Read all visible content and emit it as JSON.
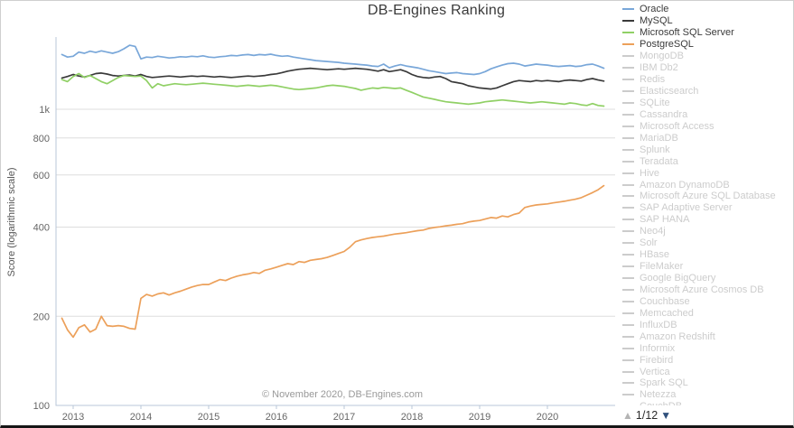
{
  "title": "DB-Engines Ranking",
  "footer": "© November 2020, DB-Engines.com",
  "y_axis": {
    "label": "Score (logarithmic scale)"
  },
  "legend": {
    "active": [
      {
        "name": "Oracle",
        "color": "#79a7d9"
      },
      {
        "name": "MySQL",
        "color": "#3a3a3a"
      },
      {
        "name": "Microsoft SQL Server",
        "color": "#90d065"
      },
      {
        "name": "PostgreSQL",
        "color": "#eca05a"
      }
    ],
    "inactive": [
      "MongoDB",
      "IBM Db2",
      "Redis",
      "Elasticsearch",
      "SQLite",
      "Cassandra",
      "Microsoft Access",
      "MariaDB",
      "Splunk",
      "Teradata",
      "Hive",
      "Amazon DynamoDB",
      "Microsoft Azure SQL Database",
      "SAP Adaptive Server",
      "SAP HANA",
      "Neo4j",
      "Solr",
      "HBase",
      "FileMaker",
      "Google BigQuery",
      "Microsoft Azure Cosmos DB",
      "Couchbase",
      "Memcached",
      "InfluxDB",
      "Amazon Redshift",
      "Informix",
      "Firebird",
      "Vertica",
      "Spark SQL",
      "Netezza",
      "CouchDB"
    ],
    "inactive_color": "#cccccc",
    "pagination": {
      "up_icon": "▲",
      "down_icon": "▼",
      "label": "1/12",
      "up_color": "#b4b4b4",
      "down_color": "#30507c"
    }
  },
  "chart_data": {
    "type": "line",
    "title": "DB-Engines Ranking",
    "ylabel": "Score (logarithmic scale)",
    "y_scale": "logarithmic",
    "grid": "horizontal-only",
    "legend_position": "right",
    "xlim": [
      2012.75,
      2021.0
    ],
    "ylim": [
      100,
      1800
    ],
    "x_start_year": 2012.8333,
    "x_step_years": 0.08333,
    "x_ticks": [
      {
        "label": "2013",
        "year": 2013
      },
      {
        "label": "2014",
        "year": 2014
      },
      {
        "label": "2015",
        "year": 2015
      },
      {
        "label": "2016",
        "year": 2016
      },
      {
        "label": "2017",
        "year": 2017
      },
      {
        "label": "2018",
        "year": 2018
      },
      {
        "label": "2019",
        "year": 2019
      },
      {
        "label": "2020",
        "year": 2020
      }
    ],
    "y_ticks": [
      {
        "label": "1k",
        "value": 1000
      },
      {
        "label": "800",
        "value": 800
      },
      {
        "label": "600",
        "value": 600
      },
      {
        "label": "400",
        "value": 400
      },
      {
        "label": "200",
        "value": 200
      },
      {
        "label": "100",
        "value": 100
      }
    ],
    "grid_values": [
      1000,
      800,
      600,
      400,
      200
    ],
    "colors": {
      "axis": "#b9c7d8",
      "grid": "#dddddd",
      "tick_text": "#666666"
    },
    "series": [
      {
        "name": "Oracle",
        "color": "#79a7d9",
        "values": [
          1530,
          1500,
          1510,
          1560,
          1545,
          1570,
          1555,
          1575,
          1560,
          1545,
          1565,
          1600,
          1645,
          1630,
          1480,
          1500,
          1495,
          1510,
          1500,
          1490,
          1495,
          1505,
          1500,
          1510,
          1505,
          1515,
          1500,
          1495,
          1505,
          1510,
          1520,
          1515,
          1525,
          1530,
          1520,
          1530,
          1525,
          1535,
          1520,
          1510,
          1515,
          1500,
          1490,
          1480,
          1470,
          1460,
          1455,
          1450,
          1445,
          1440,
          1430,
          1425,
          1420,
          1415,
          1410,
          1400,
          1395,
          1420,
          1380,
          1400,
          1415,
          1400,
          1390,
          1380,
          1365,
          1350,
          1340,
          1330,
          1320,
          1325,
          1330,
          1320,
          1315,
          1310,
          1320,
          1340,
          1370,
          1390,
          1410,
          1425,
          1430,
          1420,
          1400,
          1410,
          1420,
          1415,
          1410,
          1400,
          1395,
          1400,
          1405,
          1395,
          1400,
          1415,
          1420,
          1400,
          1375
        ]
      },
      {
        "name": "MySQL",
        "color": "#3a3a3a",
        "values": [
          1275,
          1290,
          1310,
          1295,
          1285,
          1300,
          1320,
          1325,
          1315,
          1300,
          1295,
          1300,
          1305,
          1295,
          1310,
          1290,
          1280,
          1285,
          1290,
          1295,
          1290,
          1285,
          1290,
          1295,
          1290,
          1295,
          1290,
          1285,
          1290,
          1285,
          1280,
          1285,
          1290,
          1295,
          1290,
          1295,
          1300,
          1310,
          1317,
          1330,
          1345,
          1355,
          1365,
          1370,
          1375,
          1370,
          1365,
          1360,
          1365,
          1370,
          1365,
          1370,
          1375,
          1370,
          1365,
          1355,
          1345,
          1360,
          1340,
          1350,
          1360,
          1340,
          1310,
          1290,
          1280,
          1275,
          1285,
          1290,
          1270,
          1240,
          1230,
          1220,
          1200,
          1190,
          1180,
          1175,
          1170,
          1180,
          1200,
          1220,
          1240,
          1250,
          1245,
          1240,
          1250,
          1245,
          1250,
          1245,
          1240,
          1250,
          1255,
          1250,
          1245,
          1260,
          1270,
          1255,
          1245
        ]
      },
      {
        "name": "Microsoft SQL Server",
        "color": "#90d065",
        "values": [
          1260,
          1240,
          1290,
          1320,
          1280,
          1300,
          1270,
          1240,
          1220,
          1250,
          1280,
          1300,
          1295,
          1290,
          1295,
          1250,
          1180,
          1220,
          1200,
          1210,
          1220,
          1215,
          1210,
          1215,
          1220,
          1225,
          1220,
          1215,
          1210,
          1205,
          1200,
          1195,
          1200,
          1205,
          1200,
          1195,
          1200,
          1205,
          1200,
          1190,
          1180,
          1170,
          1165,
          1170,
          1175,
          1180,
          1190,
          1200,
          1205,
          1200,
          1195,
          1185,
          1175,
          1160,
          1170,
          1180,
          1175,
          1185,
          1180,
          1175,
          1180,
          1160,
          1140,
          1120,
          1100,
          1090,
          1080,
          1070,
          1060,
          1055,
          1050,
          1045,
          1040,
          1045,
          1050,
          1060,
          1065,
          1070,
          1075,
          1070,
          1065,
          1060,
          1055,
          1050,
          1055,
          1060,
          1055,
          1050,
          1045,
          1040,
          1050,
          1045,
          1035,
          1030,
          1045,
          1030,
          1025
        ]
      },
      {
        "name": "PostgreSQL",
        "color": "#eca05a",
        "values": [
          197,
          180,
          170,
          183,
          187,
          177,
          181,
          200,
          186,
          185,
          186,
          185,
          182,
          181,
          230,
          237,
          234,
          238,
          240,
          236,
          240,
          243,
          247,
          251,
          254,
          256,
          256,
          261,
          266,
          264,
          269,
          273,
          276,
          278,
          281,
          279,
          286,
          289,
          293,
          297,
          301,
          299,
          306,
          304,
          309,
          311,
          313,
          316,
          321,
          326,
          331,
          342,
          357,
          362,
          366,
          369,
          371,
          373,
          376,
          379,
          381,
          383,
          386,
          389,
          391,
          396,
          399,
          401,
          404,
          406,
          409,
          411,
          416,
          419,
          421,
          426,
          431,
          429,
          436,
          433,
          441,
          446,
          466,
          471,
          475,
          477,
          479,
          483,
          486,
          489,
          493,
          497,
          503,
          513,
          523,
          535,
          552
        ]
      }
    ]
  }
}
